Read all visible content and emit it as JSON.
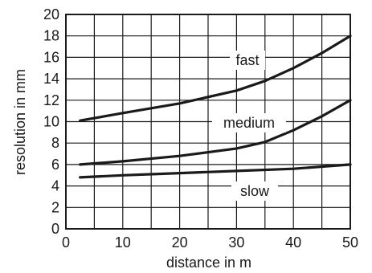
{
  "chart_data": {
    "type": "line",
    "xlabel": "distance in m",
    "ylabel": "resolution in mm",
    "xlim": [
      0,
      50
    ],
    "ylim": [
      0,
      20
    ],
    "x_ticks": [
      "0",
      "10",
      "20",
      "30",
      "40",
      "50"
    ],
    "y_ticks": [
      "0",
      "2",
      "4",
      "6",
      "8",
      "10",
      "12",
      "14",
      "16",
      "18",
      "20"
    ],
    "grid": true,
    "series": [
      {
        "name": "fast",
        "color": "#1a1a1a",
        "x": [
          2.5,
          10,
          20,
          30,
          35,
          40,
          45,
          50
        ],
        "y": [
          10.1,
          10.8,
          11.7,
          12.9,
          13.8,
          15.0,
          16.4,
          18.0
        ]
      },
      {
        "name": "medium",
        "color": "#1a1a1a",
        "x": [
          2.5,
          10,
          20,
          30,
          35,
          40,
          45,
          50
        ],
        "y": [
          6.0,
          6.3,
          6.8,
          7.5,
          8.1,
          9.2,
          10.5,
          12.0
        ]
      },
      {
        "name": "slow",
        "color": "#1a1a1a",
        "x": [
          2.5,
          10,
          20,
          30,
          40,
          50
        ],
        "y": [
          4.8,
          5.0,
          5.2,
          5.4,
          5.6,
          6.0
        ]
      }
    ]
  }
}
